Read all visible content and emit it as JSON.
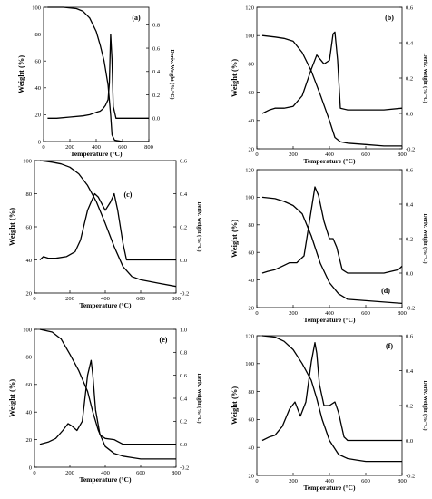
{
  "chart_data": [
    {
      "type": "line",
      "panel_label": "(a)",
      "xlabel": "Temperature (°C)",
      "ylabel": "Weight (%)",
      "y2label": "Deriv. Weight (%/°C)",
      "xlim": [
        0,
        800
      ],
      "ylim": [
        0,
        100
      ],
      "y2lim": [
        -0.2,
        0.95
      ],
      "xticks": [
        "0",
        "200",
        "400",
        "600",
        "800"
      ],
      "yticks": [
        "0",
        "20",
        "40",
        "60",
        "80",
        "100"
      ],
      "y2ticks": [
        "0.0",
        "0.2",
        "0.4",
        "0.6",
        "0.8"
      ],
      "series": [
        {
          "axis": "left",
          "x": [
            30,
            150,
            250,
            300,
            350,
            400,
            430,
            460,
            490,
            510,
            520,
            540,
            600,
            700,
            800
          ],
          "y": [
            100,
            100,
            99,
            97,
            92,
            82,
            72,
            60,
            42,
            20,
            5,
            1,
            0,
            0,
            0
          ]
        },
        {
          "axis": "right",
          "x": [
            30,
            100,
            200,
            300,
            350,
            400,
            430,
            450,
            470,
            490,
            500,
            510,
            520,
            530,
            550,
            600,
            700,
            800
          ],
          "y": [
            0.0,
            0.0,
            0.01,
            0.02,
            0.03,
            0.05,
            0.06,
            0.08,
            0.11,
            0.16,
            0.3,
            0.72,
            0.5,
            0.1,
            0.0,
            0.0,
            0.0,
            0.0
          ]
        }
      ]
    },
    {
      "type": "line",
      "panel_label": "(b)",
      "xlabel": "Temperature (°C)",
      "ylabel": "Weight (%)",
      "y2label": "Deriv. Weight (%/°C)",
      "xlim": [
        0,
        800
      ],
      "ylim": [
        20,
        120
      ],
      "y2lim": [
        -0.2,
        0.6
      ],
      "xticks": [
        "0",
        "200",
        "400",
        "600",
        "800"
      ],
      "yticks": [
        "20",
        "40",
        "60",
        "80",
        "100",
        "120"
      ],
      "y2ticks": [
        "-0.2",
        "0.0",
        "0.2",
        "0.4",
        "0.6"
      ],
      "series": [
        {
          "axis": "left",
          "x": [
            30,
            100,
            150,
            200,
            250,
            300,
            350,
            400,
            430,
            460,
            500,
            600,
            700,
            800
          ],
          "y": [
            100,
            99,
            98,
            96,
            88,
            75,
            58,
            40,
            28,
            25,
            24,
            23,
            22,
            22
          ]
        },
        {
          "axis": "right",
          "x": [
            30,
            70,
            100,
            150,
            200,
            250,
            300,
            330,
            370,
            400,
            420,
            430,
            445,
            460,
            500,
            600,
            700,
            800
          ],
          "y": [
            0.0,
            0.02,
            0.03,
            0.03,
            0.04,
            0.1,
            0.25,
            0.33,
            0.28,
            0.3,
            0.45,
            0.46,
            0.3,
            0.03,
            0.02,
            0.02,
            0.02,
            0.03
          ]
        }
      ]
    },
    {
      "type": "line",
      "panel_label": "(c)",
      "xlabel": "Temperature (°C)",
      "ylabel": "Weight (%)",
      "y2label": "Deriv. Weight (%/°C)",
      "xlim": [
        0,
        800
      ],
      "ylim": [
        20,
        100
      ],
      "y2lim": [
        -0.2,
        0.6
      ],
      "xticks": [
        "0",
        "200",
        "400",
        "600",
        "800"
      ],
      "yticks": [
        "20",
        "40",
        "60",
        "80",
        "100"
      ],
      "y2ticks": [
        "-0.2",
        "0.0",
        "0.2",
        "0.4",
        "0.6"
      ],
      "series": [
        {
          "axis": "left",
          "x": [
            30,
            100,
            150,
            200,
            250,
            300,
            350,
            400,
            450,
            500,
            550,
            600,
            700,
            800
          ],
          "y": [
            100,
            99,
            98,
            96,
            92,
            85,
            75,
            62,
            48,
            36,
            30,
            28,
            26,
            24
          ]
        },
        {
          "axis": "right",
          "x": [
            30,
            50,
            80,
            120,
            180,
            230,
            260,
            300,
            340,
            360,
            400,
            430,
            450,
            470,
            500,
            520,
            600,
            700,
            800
          ],
          "y": [
            0.0,
            0.02,
            0.01,
            0.01,
            0.02,
            0.05,
            0.12,
            0.3,
            0.4,
            0.38,
            0.3,
            0.35,
            0.4,
            0.3,
            0.1,
            0.0,
            0.0,
            0.0,
            0.0
          ]
        }
      ]
    },
    {
      "type": "line",
      "panel_label": "(d)",
      "xlabel": "Temperature (°C)",
      "ylabel": "Weight (%)",
      "y2label": "Deriv. Weight (%/°C)",
      "xlim": [
        0,
        800
      ],
      "ylim": [
        20,
        120
      ],
      "y2lim": [
        -0.2,
        0.6
      ],
      "xticks": [
        "0",
        "200",
        "400",
        "600",
        "800"
      ],
      "yticks": [
        "20",
        "40",
        "60",
        "80",
        "100",
        "120"
      ],
      "y2ticks": [
        "-0.2",
        "0.0",
        "0.2",
        "0.4",
        "0.6"
      ],
      "series": [
        {
          "axis": "left",
          "x": [
            30,
            100,
            150,
            200,
            250,
            300,
            350,
            400,
            450,
            500,
            600,
            700,
            800
          ],
          "y": [
            100,
            99,
            97,
            94,
            88,
            72,
            52,
            38,
            30,
            26,
            25,
            24,
            23
          ]
        },
        {
          "axis": "right",
          "x": [
            30,
            60,
            100,
            140,
            180,
            220,
            260,
            290,
            320,
            340,
            370,
            400,
            420,
            440,
            470,
            500,
            600,
            700,
            780,
            800
          ],
          "y": [
            0.0,
            0.01,
            0.02,
            0.04,
            0.06,
            0.06,
            0.1,
            0.3,
            0.5,
            0.45,
            0.3,
            0.2,
            0.2,
            0.15,
            0.02,
            0.0,
            0.0,
            0.0,
            0.02,
            0.04
          ]
        }
      ]
    },
    {
      "type": "line",
      "panel_label": "(e)",
      "xlabel": "Temperature (°C)",
      "ylabel": "Weight (%)",
      "y2label": "Deriv. Weight (%/°C)",
      "xlim": [
        0,
        800
      ],
      "ylim": [
        0,
        100
      ],
      "y2lim": [
        -0.2,
        1.0
      ],
      "xticks": [
        "0",
        "200",
        "400",
        "600",
        "800"
      ],
      "yticks": [
        "0",
        "20",
        "40",
        "60",
        "80",
        "100"
      ],
      "y2ticks": [
        "-0.2",
        "0.0",
        "0.2",
        "0.4",
        "0.6",
        "0.8",
        "1.0"
      ],
      "series": [
        {
          "axis": "left",
          "x": [
            30,
            100,
            150,
            200,
            250,
            300,
            330,
            360,
            400,
            450,
            500,
            550,
            600,
            700,
            800
          ],
          "y": [
            100,
            98,
            93,
            82,
            70,
            55,
            40,
            27,
            15,
            10,
            8,
            7,
            6,
            6,
            6
          ]
        },
        {
          "axis": "right",
          "x": [
            30,
            80,
            120,
            160,
            190,
            210,
            240,
            270,
            300,
            320,
            330,
            345,
            370,
            400,
            450,
            500,
            600,
            700,
            800
          ],
          "y": [
            0.0,
            0.02,
            0.05,
            0.12,
            0.18,
            0.16,
            0.12,
            0.2,
            0.6,
            0.73,
            0.6,
            0.3,
            0.08,
            0.05,
            0.04,
            0.0,
            0.0,
            0.0,
            0.0
          ]
        }
      ]
    },
    {
      "type": "line",
      "panel_label": "(f)",
      "xlabel": "Temperature (°C)",
      "ylabel": "Weight (%)",
      "y2label": "Deriv. Weight (%/°C)",
      "xlim": [
        0,
        800
      ],
      "ylim": [
        20,
        120
      ],
      "y2lim": [
        -0.2,
        0.6
      ],
      "xticks": [
        "0",
        "200",
        "400",
        "600",
        "800"
      ],
      "yticks": [
        "20",
        "40",
        "60",
        "80",
        "100",
        "120"
      ],
      "y2ticks": [
        "-0.2",
        "0.0",
        "0.2",
        "0.4",
        "0.6"
      ],
      "series": [
        {
          "axis": "left",
          "x": [
            30,
            100,
            150,
            200,
            250,
            300,
            330,
            360,
            400,
            450,
            500,
            550,
            600,
            700,
            800
          ],
          "y": [
            120,
            119,
            116,
            110,
            100,
            88,
            75,
            60,
            45,
            35,
            32,
            31,
            30,
            30,
            30
          ]
        },
        {
          "axis": "right",
          "x": [
            30,
            70,
            100,
            140,
            180,
            210,
            240,
            270,
            300,
            320,
            330,
            345,
            370,
            400,
            430,
            450,
            480,
            500,
            600,
            700,
            800
          ],
          "y": [
            0.0,
            0.02,
            0.03,
            0.08,
            0.18,
            0.22,
            0.14,
            0.22,
            0.45,
            0.56,
            0.5,
            0.32,
            0.2,
            0.2,
            0.22,
            0.16,
            0.02,
            0.0,
            0.0,
            0.0,
            0.0
          ]
        }
      ]
    }
  ]
}
